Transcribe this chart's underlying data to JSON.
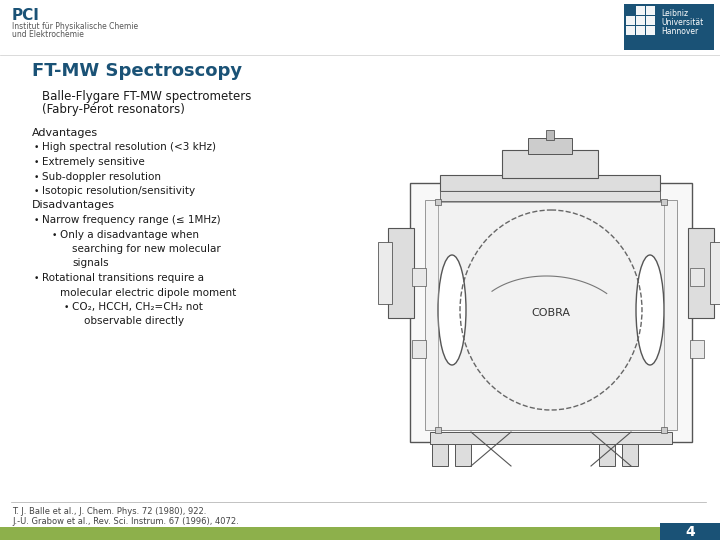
{
  "bg_color": "#ffffff",
  "title": "FT-MW Spectroscopy",
  "title_color": "#1a5276",
  "title_fontsize": 13,
  "header_inst_line1": "PCI",
  "header_inst_line2": "Institut für Physikalische Chemie",
  "header_inst_line3": "und Elektrochemie",
  "header_uni_bg": "#1a5276",
  "subtitle_line1": "Balle-Flygare FT-MW spectrometers",
  "subtitle_line2": "(Fabry-Pérot resonators)",
  "body_lines": [
    {
      "text": "Advantages",
      "indent": 0,
      "bullet": false
    },
    {
      "text": "High spectral resolution (<3 kHz)",
      "indent": 1,
      "bullet": true
    },
    {
      "text": "Extremely sensitive",
      "indent": 1,
      "bullet": true
    },
    {
      "text": "Sub-doppler resolution",
      "indent": 1,
      "bullet": true
    },
    {
      "text": "Isotopic resolution/sensitivity",
      "indent": 1,
      "bullet": true
    },
    {
      "text": "Disadvantages",
      "indent": 0,
      "bullet": false
    },
    {
      "text": "Narrow frequency range (≤ 1MHz)",
      "indent": 1,
      "bullet": true
    },
    {
      "text": "Only a disadvantage when",
      "indent": 2,
      "bullet": true
    },
    {
      "text": "searching for new molecular",
      "indent": 3,
      "bullet": false
    },
    {
      "text": "signals",
      "indent": 3,
      "bullet": false
    },
    {
      "text": "Rotational transitions require a",
      "indent": 1,
      "bullet": true
    },
    {
      "text": "molecular electric dipole moment",
      "indent": 2,
      "bullet": false
    },
    {
      "text": "CO₂, HCCH, CH₂=CH₂ not",
      "indent": 3,
      "bullet": true
    },
    {
      "text": "observable directly",
      "indent": 4,
      "bullet": false
    }
  ],
  "footer_refs": [
    "T. J. Balle et al., J. Chem. Phys. 72 (1980), 922.",
    "J.-U. Grabow et al., Rev. Sci. Instrum. 67 (1996), 4072."
  ],
  "footer_bar_color": "#8db04b",
  "page_number": "4",
  "text_color": "#1a1a1a",
  "body_fontsize": 7.5,
  "subtitle_fontsize": 8.5,
  "footer_fontsize": 6.0,
  "header_fontsize_pci": 11,
  "header_fontsize_inst": 5.5
}
